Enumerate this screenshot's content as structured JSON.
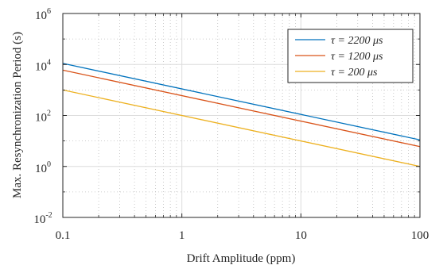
{
  "chart_data": {
    "type": "line",
    "title": "",
    "xlabel": "Drift Amplitude (ppm)",
    "ylabel": "Max. Resynchronization Period (s)",
    "xscale": "log",
    "yscale": "log",
    "xlim": [
      0.1,
      100
    ],
    "ylim": [
      0.01,
      1000000
    ],
    "x_ticks": [
      {
        "value": 0.1,
        "label": "0.1"
      },
      {
        "value": 1,
        "label": "1"
      },
      {
        "value": 10,
        "label": "10"
      },
      {
        "value": 100,
        "label": "100"
      }
    ],
    "y_ticks": [
      {
        "value": 0.01,
        "base": "10",
        "exp": "-2"
      },
      {
        "value": 1,
        "base": "10",
        "exp": "0"
      },
      {
        "value": 100,
        "base": "10",
        "exp": "2"
      },
      {
        "value": 10000,
        "base": "10",
        "exp": "4"
      },
      {
        "value": 1000000,
        "base": "10",
        "exp": "6"
      }
    ],
    "grid": true,
    "legend_position": "top-right",
    "series": [
      {
        "name": "τ = 2200 μs",
        "color": "#0072BD",
        "x": [
          0.1,
          100
        ],
        "y": [
          11000,
          11
        ]
      },
      {
        "name": "τ = 1200 μs",
        "color": "#D95319",
        "x": [
          0.1,
          100
        ],
        "y": [
          6000,
          6
        ]
      },
      {
        "name": "τ = 200 μs",
        "color": "#EDB120",
        "x": [
          0.1,
          100
        ],
        "y": [
          1000,
          1
        ]
      }
    ]
  }
}
